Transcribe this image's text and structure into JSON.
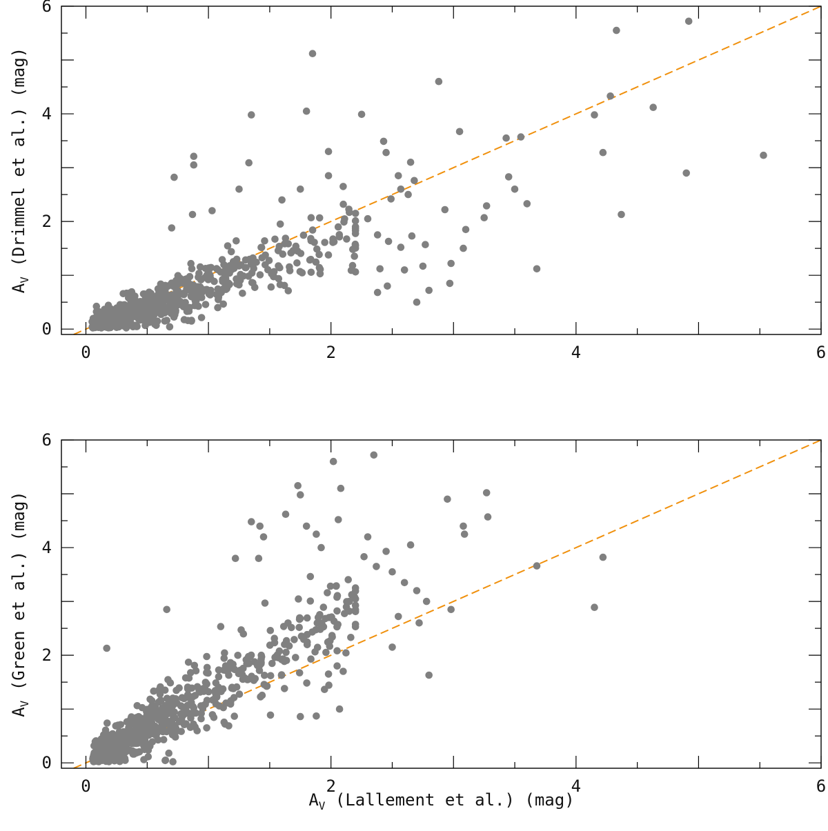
{
  "chart_data": [
    {
      "type": "scatter",
      "panel": "top",
      "xlabel_prefix": "A",
      "xlabel_sub": "V",
      "xlabel_rest": " (Lallement et al.) (mag)",
      "ylabel_prefix": "A",
      "ylabel_sub": "V",
      "ylabel_rest": " (Drimmel et al.) (mag)",
      "xlim": [
        -0.2,
        6
      ],
      "ylim": [
        -0.1,
        6
      ],
      "xticks": [
        "0",
        "2",
        "4",
        "6"
      ],
      "yticks": [
        "0",
        "2",
        "4",
        "6"
      ],
      "show_xlabel": false,
      "reference_line": {
        "label": "1:1",
        "color": "#f0900c",
        "style": "dashed"
      },
      "marker_color": "#808080",
      "outliers": [
        [
          1.85,
          5.12
        ],
        [
          4.33,
          5.55
        ],
        [
          4.92,
          5.72
        ],
        [
          2.88,
          4.6
        ],
        [
          1.35,
          3.98
        ],
        [
          1.8,
          4.05
        ],
        [
          2.25,
          3.99
        ],
        [
          4.15,
          3.98
        ],
        [
          4.28,
          4.33
        ],
        [
          4.63,
          4.12
        ],
        [
          3.05,
          3.67
        ],
        [
          3.43,
          3.55
        ],
        [
          3.55,
          3.57
        ],
        [
          0.88,
          3.21
        ],
        [
          0.88,
          3.05
        ],
        [
          1.33,
          3.09
        ],
        [
          2.43,
          3.49
        ],
        [
          2.45,
          3.28
        ],
        [
          2.65,
          3.1
        ],
        [
          4.22,
          3.28
        ],
        [
          5.53,
          3.23
        ],
        [
          4.9,
          2.9
        ],
        [
          3.45,
          2.83
        ],
        [
          3.5,
          2.6
        ],
        [
          3.6,
          2.33
        ],
        [
          3.27,
          2.29
        ],
        [
          3.25,
          2.07
        ],
        [
          2.93,
          2.22
        ],
        [
          3.1,
          1.85
        ],
        [
          3.08,
          1.5
        ],
        [
          2.98,
          1.22
        ],
        [
          2.97,
          0.85
        ],
        [
          2.8,
          0.72
        ],
        [
          2.7,
          0.5
        ],
        [
          3.68,
          1.12
        ],
        [
          4.37,
          2.13
        ],
        [
          2.57,
          1.52
        ],
        [
          2.6,
          1.1
        ],
        [
          2.75,
          1.17
        ],
        [
          2.77,
          1.57
        ],
        [
          2.66,
          1.73
        ],
        [
          2.4,
          1.12
        ],
        [
          2.46,
          0.8
        ],
        [
          2.38,
          0.68
        ],
        [
          2.38,
          1.75
        ],
        [
          2.47,
          1.63
        ],
        [
          2.3,
          2.05
        ],
        [
          2.49,
          2.42
        ],
        [
          2.57,
          2.6
        ],
        [
          2.63,
          2.5
        ],
        [
          2.68,
          2.76
        ],
        [
          2.55,
          2.85
        ],
        [
          0.72,
          2.82
        ],
        [
          1.03,
          2.2
        ],
        [
          1.25,
          2.6
        ],
        [
          1.98,
          2.85
        ],
        [
          1.98,
          3.3
        ],
        [
          2.1,
          2.65
        ],
        [
          1.75,
          2.6
        ],
        [
          2.15,
          2.17
        ],
        [
          2.2,
          2.15
        ],
        [
          0.7,
          1.88
        ],
        [
          0.87,
          2.13
        ],
        [
          1.6,
          2.4
        ]
      ],
      "cluster": {
        "count": 620,
        "x_max": 2.2,
        "slope": 0.82,
        "spread": 0.3,
        "seed": 11
      }
    },
    {
      "type": "scatter",
      "panel": "bottom",
      "xlabel_prefix": "A",
      "xlabel_sub": "V",
      "xlabel_rest": " (Lallement et al.) (mag)",
      "ylabel_prefix": "A",
      "ylabel_sub": "V",
      "ylabel_rest": " (Green et al.) (mag)",
      "xlim": [
        -0.2,
        6
      ],
      "ylim": [
        -0.1,
        6
      ],
      "xticks": [
        "0",
        "2",
        "4",
        "6"
      ],
      "yticks": [
        "0",
        "2",
        "4",
        "6"
      ],
      "show_xlabel": true,
      "reference_line": {
        "label": "1:1",
        "color": "#f0900c",
        "style": "dashed"
      },
      "marker_color": "#808080",
      "outliers": [
        [
          2.02,
          5.6
        ],
        [
          2.35,
          5.72
        ],
        [
          2.08,
          5.1
        ],
        [
          1.73,
          5.15
        ],
        [
          1.75,
          4.98
        ],
        [
          1.63,
          4.62
        ],
        [
          1.35,
          4.48
        ],
        [
          1.42,
          4.4
        ],
        [
          1.45,
          4.2
        ],
        [
          1.8,
          4.4
        ],
        [
          2.06,
          4.52
        ],
        [
          2.95,
          4.9
        ],
        [
          3.27,
          5.02
        ],
        [
          3.28,
          4.57
        ],
        [
          3.08,
          4.4
        ],
        [
          3.09,
          4.25
        ],
        [
          2.3,
          4.2
        ],
        [
          2.45,
          3.93
        ],
        [
          2.37,
          3.65
        ],
        [
          2.27,
          3.83
        ],
        [
          1.88,
          4.25
        ],
        [
          1.92,
          4.0
        ],
        [
          2.5,
          3.55
        ],
        [
          2.65,
          4.05
        ],
        [
          2.6,
          3.35
        ],
        [
          2.7,
          3.2
        ],
        [
          2.78,
          3.0
        ],
        [
          2.72,
          2.6
        ],
        [
          2.98,
          2.85
        ],
        [
          2.8,
          1.63
        ],
        [
          3.68,
          3.66
        ],
        [
          4.22,
          3.82
        ],
        [
          4.15,
          2.89
        ],
        [
          2.55,
          2.72
        ],
        [
          2.5,
          2.15
        ],
        [
          1.22,
          3.8
        ],
        [
          1.41,
          3.8
        ],
        [
          0.17,
          2.13
        ],
        [
          0.66,
          2.85
        ],
        [
          0.71,
          0.02
        ],
        [
          0.65,
          0.05
        ],
        [
          2.07,
          1.0
        ],
        [
          1.98,
          1.65
        ],
        [
          1.75,
          0.86
        ],
        [
          1.88,
          0.87
        ],
        [
          2.05,
          1.8
        ],
        [
          2.1,
          1.7
        ],
        [
          2.2,
          3.25
        ],
        [
          2.15,
          3.0
        ]
      ],
      "cluster": {
        "count": 640,
        "x_max": 2.2,
        "slope": 1.3,
        "spread": 0.42,
        "seed": 23
      }
    }
  ]
}
